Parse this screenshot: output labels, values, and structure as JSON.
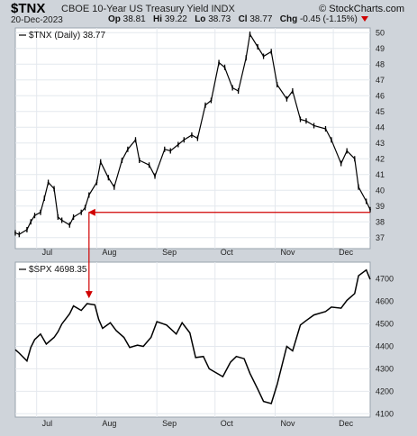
{
  "header": {
    "symbol": "$TNX",
    "full_name": "CBOE 10-Year US Treasury Yield INDX",
    "brand": "© StockCharts.com",
    "date": "20-Dec-2023",
    "open_label": "Op",
    "open": "38.81",
    "high_label": "Hi",
    "high": "39.22",
    "low_label": "Lo",
    "low": "38.73",
    "close_label": "Cl",
    "close": "38.77",
    "change_label": "Chg",
    "change": "-0.45 (-1.15%)"
  },
  "chart_data": [
    {
      "type": "line",
      "legend": "$TNX (Daily) 38.77",
      "y_ticks": [
        "50",
        "49",
        "48",
        "47",
        "46",
        "45",
        "44",
        "43",
        "42",
        "41",
        "40",
        "39",
        "38",
        "37"
      ],
      "ylim": [
        36.3,
        50.3
      ],
      "x_labels": [
        "Jul",
        "Aug",
        "Sep",
        "Oct",
        "Nov",
        "Dec"
      ],
      "x": [
        "2023-06-20",
        "2023-06-22",
        "2023-06-26",
        "2023-06-28",
        "2023-06-30",
        "2023-07-03",
        "2023-07-05",
        "2023-07-07",
        "2023-07-10",
        "2023-07-12",
        "2023-07-14",
        "2023-07-18",
        "2023-07-20",
        "2023-07-24",
        "2023-07-26",
        "2023-07-28",
        "2023-08-01",
        "2023-08-03",
        "2023-08-07",
        "2023-08-10",
        "2023-08-14",
        "2023-08-17",
        "2023-08-21",
        "2023-08-23",
        "2023-08-28",
        "2023-08-31",
        "2023-09-05",
        "2023-09-08",
        "2023-09-12",
        "2023-09-15",
        "2023-09-19",
        "2023-09-22",
        "2023-09-26",
        "2023-09-29",
        "2023-10-03",
        "2023-10-06",
        "2023-10-10",
        "2023-10-13",
        "2023-10-17",
        "2023-10-19",
        "2023-10-23",
        "2023-10-26",
        "2023-10-30",
        "2023-11-02",
        "2023-11-07",
        "2023-11-10",
        "2023-11-14",
        "2023-11-17",
        "2023-11-21",
        "2023-11-27",
        "2023-11-30",
        "2023-12-05",
        "2023-12-08",
        "2023-12-12",
        "2023-12-14",
        "2023-12-18",
        "2023-12-20"
      ],
      "values": [
        37.3,
        37.2,
        37.5,
        38.0,
        38.4,
        38.6,
        39.5,
        40.5,
        40.1,
        38.3,
        38.1,
        37.8,
        38.3,
        38.6,
        38.9,
        39.7,
        40.5,
        41.8,
        40.8,
        40.2,
        41.9,
        42.6,
        43.2,
        41.9,
        41.6,
        40.9,
        42.6,
        42.5,
        42.9,
        43.2,
        43.5,
        43.3,
        45.4,
        45.7,
        48.1,
        47.8,
        46.5,
        46.3,
        48.4,
        49.9,
        49.1,
        48.5,
        48.8,
        46.7,
        45.8,
        46.3,
        44.5,
        44.4,
        44.1,
        43.9,
        43.2,
        41.7,
        42.5,
        42.0,
        40.2,
        39.3,
        38.77
      ],
      "annotation_level": 38.6
    },
    {
      "type": "line",
      "legend": "$SPX 4698.35",
      "y_ticks": [
        "4700",
        "4600",
        "4500",
        "4400",
        "4300",
        "4200",
        "4100"
      ],
      "ylim": [
        4085,
        4775
      ],
      "x_labels": [
        "Jul",
        "Aug",
        "Sep",
        "Oct",
        "Nov",
        "Dec"
      ],
      "x": [
        "2023-06-20",
        "2023-06-22",
        "2023-06-26",
        "2023-06-28",
        "2023-06-30",
        "2023-07-03",
        "2023-07-06",
        "2023-07-10",
        "2023-07-12",
        "2023-07-14",
        "2023-07-18",
        "2023-07-20",
        "2023-07-24",
        "2023-07-27",
        "2023-07-31",
        "2023-08-02",
        "2023-08-04",
        "2023-08-08",
        "2023-08-11",
        "2023-08-15",
        "2023-08-18",
        "2023-08-22",
        "2023-08-25",
        "2023-08-29",
        "2023-09-01",
        "2023-09-06",
        "2023-09-11",
        "2023-09-14",
        "2023-09-18",
        "2023-09-21",
        "2023-09-25",
        "2023-09-28",
        "2023-10-02",
        "2023-10-05",
        "2023-10-09",
        "2023-10-12",
        "2023-10-16",
        "2023-10-19",
        "2023-10-23",
        "2023-10-26",
        "2023-10-30",
        "2023-11-02",
        "2023-11-07",
        "2023-11-10",
        "2023-11-14",
        "2023-11-17",
        "2023-11-21",
        "2023-11-27",
        "2023-11-30",
        "2023-12-05",
        "2023-12-08",
        "2023-12-12",
        "2023-12-14",
        "2023-12-18",
        "2023-12-20"
      ],
      "values": [
        4385,
        4370,
        4335,
        4395,
        4430,
        4455,
        4410,
        4440,
        4465,
        4500,
        4545,
        4580,
        4560,
        4590,
        4585,
        4520,
        4480,
        4505,
        4470,
        4440,
        4395,
        4405,
        4400,
        4440,
        4510,
        4495,
        4455,
        4505,
        4460,
        4350,
        4355,
        4300,
        4280,
        4265,
        4330,
        4355,
        4345,
        4280,
        4210,
        4155,
        4145,
        4230,
        4400,
        4380,
        4495,
        4515,
        4540,
        4555,
        4575,
        4570,
        4605,
        4635,
        4715,
        4740,
        4698.35
      ]
    }
  ]
}
